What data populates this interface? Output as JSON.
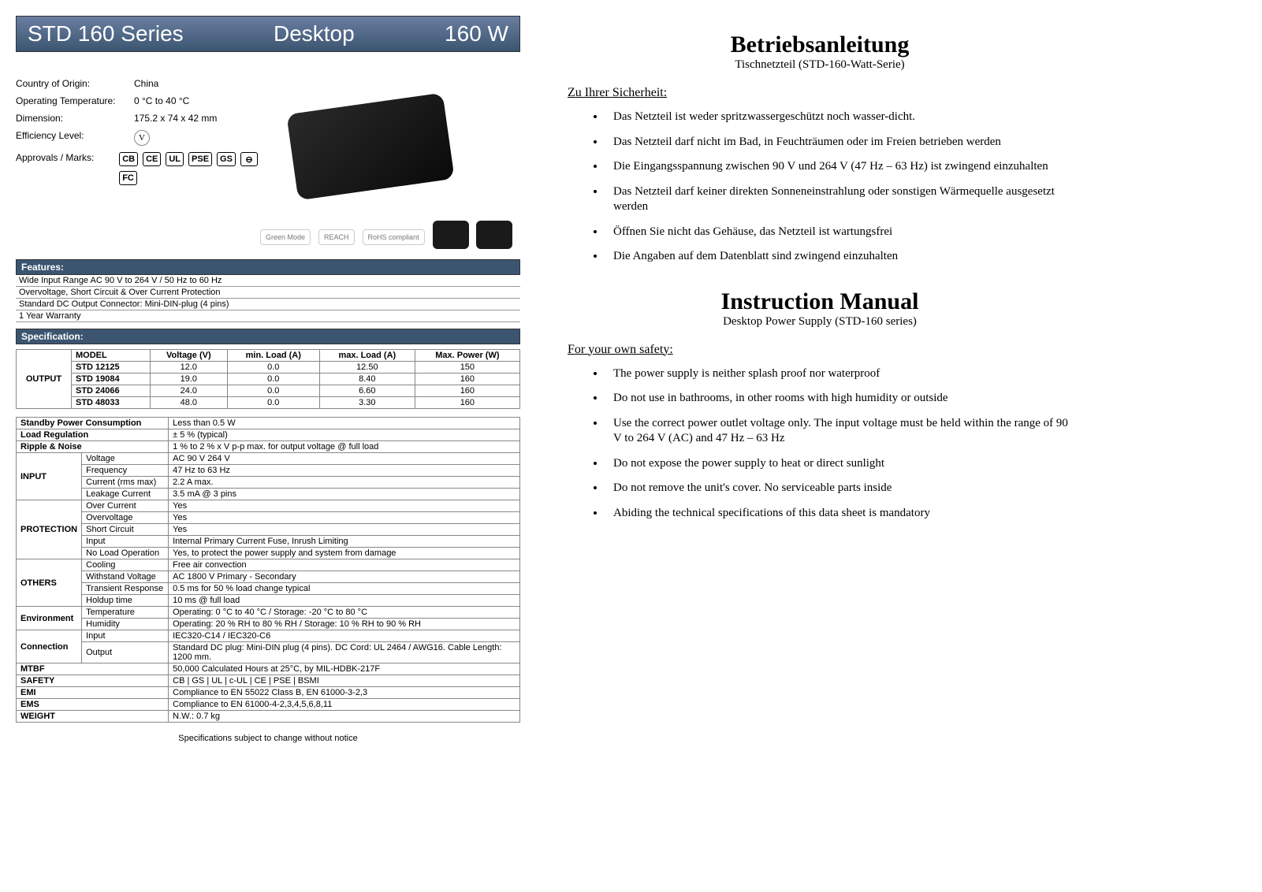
{
  "header": {
    "series": "STD 160 Series",
    "type": "Desktop",
    "power": "160 W"
  },
  "features_top": {
    "country_label": "Country of Origin:",
    "country_val": "China",
    "optemp_label": "Operating Temperature:",
    "optemp_val": "0 °C to 40 °C",
    "dim_label": "Dimension:",
    "dim_val": "175.2 x 74 x 42 mm",
    "eff_label": "Efficiency Level:",
    "eff_val": "V",
    "approvals_label": "Approvals / Marks:"
  },
  "cert_marks": [
    "CB",
    "CE",
    "UL",
    "PSE",
    "GS",
    "⊖",
    "FC"
  ],
  "img_badges": [
    "Green Mode",
    "REACH",
    "RoHS compliant"
  ],
  "features_header": "Features:",
  "features_lines": [
    "Wide Input Range AC 90 V to 264 V / 50 Hz to 60 Hz",
    "Overvoltage, Short Circuit & Over Current Protection",
    "Standard DC Output Connector: Mini-DIN-plug (4 pins)",
    "1 Year Warranty"
  ],
  "spec_header": "Specification:",
  "output_table": {
    "label": "OUTPUT",
    "headers": [
      "MODEL",
      "Voltage (V)",
      "min. Load (A)",
      "max. Load (A)",
      "Max. Power (W)"
    ],
    "rows": [
      [
        "STD 12125",
        "12.0",
        "0.0",
        "12.50",
        "150"
      ],
      [
        "STD 19084",
        "19.0",
        "0.0",
        "8.40",
        "160"
      ],
      [
        "STD 24066",
        "24.0",
        "0.0",
        "6.60",
        "160"
      ],
      [
        "STD 48033",
        "48.0",
        "0.0",
        "3.30",
        "160"
      ]
    ]
  },
  "spec_rows": [
    {
      "group": "",
      "label": "Standby Power Consumption",
      "val": "Less than 0.5 W",
      "bold": true
    },
    {
      "group": "",
      "label": "Load Regulation",
      "val": "± 5 % (typical)",
      "bold": true
    },
    {
      "group": "",
      "label": "Ripple & Noise",
      "val": "1 % to 2 % x V p-p max. for output voltage @ full load",
      "bold": true
    },
    {
      "group": "INPUT",
      "label": "Voltage",
      "val": "AC 90 V 264 V"
    },
    {
      "group": "INPUT",
      "label": "Frequency",
      "val": "47 Hz to 63 Hz"
    },
    {
      "group": "INPUT",
      "label": "Current (rms max)",
      "val": "2.2 A max."
    },
    {
      "group": "INPUT",
      "label": "Leakage Current",
      "val": "3.5 mA @ 3 pins"
    },
    {
      "group": "PROTECTION",
      "label": "Over Current",
      "val": "Yes"
    },
    {
      "group": "PROTECTION",
      "label": "Overvoltage",
      "val": "Yes"
    },
    {
      "group": "PROTECTION",
      "label": "Short Circuit",
      "val": "Yes"
    },
    {
      "group": "PROTECTION",
      "label": "Input",
      "val": "Internal Primary Current Fuse, Inrush Limiting"
    },
    {
      "group": "PROTECTION",
      "label": "No Load Operation",
      "val": "Yes, to protect the power supply and system from damage"
    },
    {
      "group": "OTHERS",
      "label": "Cooling",
      "val": "Free air convection"
    },
    {
      "group": "OTHERS",
      "label": "Withstand Voltage",
      "val": "AC 1800 V Primary - Secondary"
    },
    {
      "group": "OTHERS",
      "label": "Transient Response",
      "val": "0.5 ms for 50 % load change typical"
    },
    {
      "group": "OTHERS",
      "label": "Holdup time",
      "val": "10 ms @ full load"
    },
    {
      "group": "Environment",
      "label": "Temperature",
      "val": "Operating: 0 °C to 40 °C / Storage: -20 °C to 80 °C"
    },
    {
      "group": "Environment",
      "label": "Humidity",
      "val": "Operating: 20 % RH to 80 % RH / Storage: 10 % RH to 90 % RH"
    },
    {
      "group": "Connection",
      "label": "Input",
      "val": "IEC320-C14 / IEC320-C6"
    },
    {
      "group": "Connection",
      "label": "Output",
      "val": "Standard DC plug: Mini-DIN plug (4 pins). DC Cord: UL 2464 / AWG16. Cable Length: 1200 mm."
    },
    {
      "group": "",
      "label": "MTBF",
      "val": "50,000 Calculated Hours at 25°C, by MIL-HDBK-217F",
      "bold": true
    },
    {
      "group": "",
      "label": "SAFETY",
      "val": "CB | GS | UL | c-UL | CE | PSE | BSMI",
      "bold": true
    },
    {
      "group": "",
      "label": "EMI",
      "val": "Compliance to EN 55022 Class B, EN 61000-3-2,3",
      "bold": true
    },
    {
      "group": "",
      "label": "EMS",
      "val": "Compliance to EN 61000-4-2,3,4,5,6,8,11",
      "bold": true
    },
    {
      "group": "",
      "label": "WEIGHT",
      "val": "N.W.: 0.7 kg",
      "bold": true
    }
  ],
  "footnote": "Specifications subject to change without notice",
  "right": {
    "de_title": "Betriebsanleitung",
    "de_sub": "Tischnetzteil (STD-160-Watt-Serie)",
    "de_head": "Zu Ihrer Sicherheit:",
    "de_items": [
      "Das Netzteil ist weder spritzwassergeschützt noch wasser-dicht.",
      "Das Netzteil darf nicht im Bad, in Feuchträumen oder im Freien betrieben werden",
      "Die Eingangsspannung zwischen 90 V und 264 V (47 Hz – 63 Hz) ist zwingend einzuhalten",
      "Das Netzteil darf keiner direkten Sonneneinstrahlung oder sonstigen Wärmequelle ausgesetzt werden",
      "Öffnen Sie nicht das Gehäuse, das Netzteil ist wartungsfrei",
      "Die Angaben auf dem Datenblatt sind zwingend einzuhalten"
    ],
    "en_title": "Instruction Manual",
    "en_sub": "Desktop Power Supply (STD-160 series)",
    "en_head": "For your own safety:",
    "en_items": [
      "The power supply is neither splash proof nor waterproof",
      "Do not use in bathrooms, in other rooms with high humidity or outside",
      "Use the correct power outlet voltage only. The input voltage must be held within the range of  90 V to 264 V (AC) and 47 Hz – 63 Hz",
      "Do not expose the power supply to heat or direct sunlight",
      "Do not remove the unit's cover. No serviceable parts inside",
      "Abiding the technical specifications of this data sheet is mandatory"
    ]
  }
}
